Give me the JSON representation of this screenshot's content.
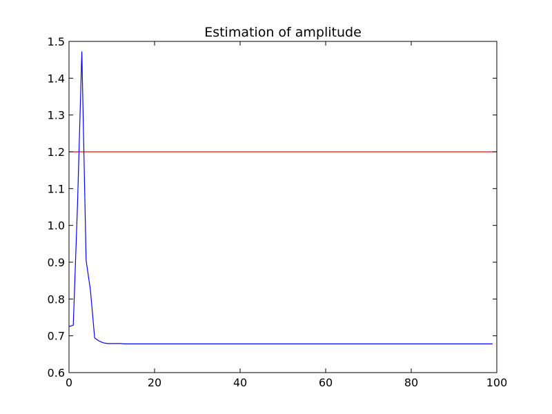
{
  "chart_data": {
    "type": "line",
    "title": "Estimation of amplitude",
    "xlabel": "",
    "ylabel": "",
    "xlim": [
      0,
      100
    ],
    "ylim": [
      0.6,
      1.5
    ],
    "xticks": [
      0,
      20,
      40,
      60,
      80,
      100
    ],
    "xtick_labels": [
      "0",
      "20",
      "40",
      "60",
      "80",
      "100"
    ],
    "yticks": [
      0.6,
      0.7,
      0.8,
      0.9,
      1.0,
      1.1,
      1.2,
      1.3,
      1.4,
      1.5
    ],
    "ytick_labels": [
      "0.6",
      "0.7",
      "0.8",
      "0.9",
      "1.0",
      "1.1",
      "1.2",
      "1.3",
      "1.4",
      "1.5"
    ],
    "grid": false,
    "series": [
      {
        "color": "#0000ff",
        "x": [
          0,
          1,
          2,
          3,
          4,
          5,
          6,
          7,
          8,
          9,
          10,
          11,
          12,
          13,
          14,
          15,
          20,
          30,
          40,
          50,
          60,
          70,
          80,
          90,
          99
        ],
        "y": [
          0.725,
          0.729,
          1.06,
          1.472,
          0.905,
          0.825,
          0.694,
          0.686,
          0.681,
          0.679,
          0.679,
          0.679,
          0.679,
          0.678,
          0.678,
          0.678,
          0.678,
          0.678,
          0.678,
          0.678,
          0.678,
          0.678,
          0.678,
          0.678,
          0.678
        ]
      }
    ],
    "hlines": [
      {
        "y": 1.2,
        "color": "#ff0000"
      }
    ]
  }
}
